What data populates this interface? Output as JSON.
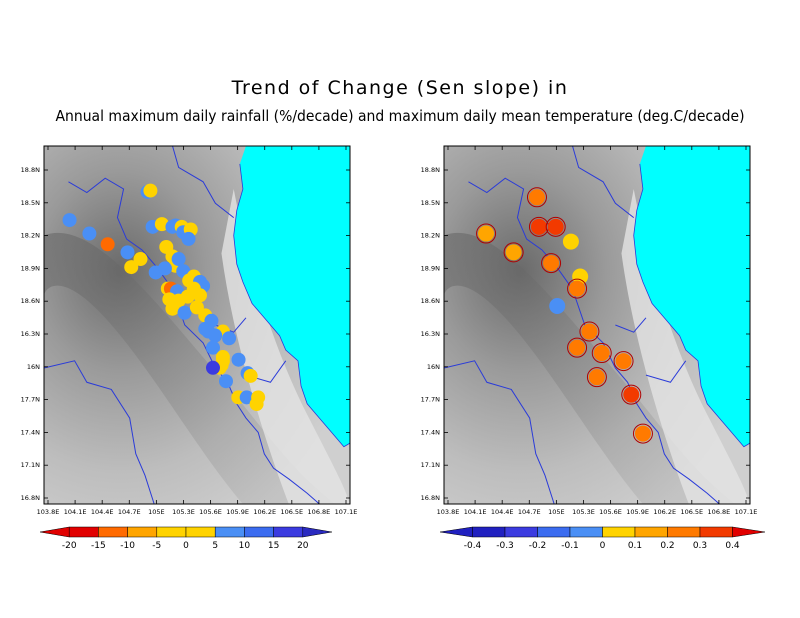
{
  "title": "Trend of Change (Sen slope) in",
  "subtitle": "Annual maximum daily rainfall (%/decade) and maximum daily mean temperature (deg.C/decade)",
  "lat_labels": [
    "18.8N",
    "18.5N",
    "18.2N",
    "18.9N",
    "18.6N",
    "16.3N",
    "16N",
    "17.7N",
    "17.4N",
    "17.1N",
    "16.8N"
  ],
  "lon_labels": [
    "103.8E",
    "104.1E",
    "104.4E",
    "104.7E",
    "105E",
    "105.3E",
    "105.6E",
    "105.9E",
    "106.2E",
    "106.5E",
    "106.8E",
    "107.1E"
  ],
  "colors": {
    "sea": "#00ffff",
    "boundary": "#2a3bd9",
    "panel_bg": "#c8c8c8"
  },
  "chart_data": [
    {
      "type": "scatter",
      "panel": "rainfall",
      "colorbar": {
        "labels": [
          "-20",
          "-15",
          "-10",
          "-5",
          "0",
          "5",
          "10",
          "15",
          "20"
        ],
        "colors": [
          "#e10000",
          "#ff6a00",
          "#ffa500",
          "#ffd300",
          "#ffd300",
          "#4a8ff5",
          "#3b6cf0",
          "#3b3be0",
          "#2a2ac0"
        ]
      },
      "stations": [
        {
          "x": 0.116,
          "y": 0.276,
          "v": 8
        },
        {
          "x": 0.206,
          "y": 0.326,
          "v": 8
        },
        {
          "x": 0.289,
          "y": 0.366,
          "v": -12
        },
        {
          "x": 0.379,
          "y": 0.396,
          "v": 8
        },
        {
          "x": 0.396,
          "y": 0.451,
          "v": -5
        },
        {
          "x": 0.438,
          "y": 0.421,
          "v": -5
        },
        {
          "x": 0.47,
          "y": 0.171,
          "v": 8
        },
        {
          "x": 0.483,
          "y": 0.166,
          "v": -5
        },
        {
          "x": 0.493,
          "y": 0.301,
          "v": 8
        },
        {
          "x": 0.535,
          "y": 0.291,
          "v": -5
        },
        {
          "x": 0.583,
          "y": 0.301,
          "v": 8
        },
        {
          "x": 0.597,
          "y": 0.296,
          "v": 8
        },
        {
          "x": 0.625,
          "y": 0.301,
          "v": -5
        },
        {
          "x": 0.632,
          "y": 0.321,
          "v": 8
        },
        {
          "x": 0.666,
          "y": 0.311,
          "v": -5
        },
        {
          "x": 0.656,
          "y": 0.346,
          "v": 8
        },
        {
          "x": 0.555,
          "y": 0.376,
          "v": -5
        },
        {
          "x": 0.583,
          "y": 0.411,
          "v": -5
        },
        {
          "x": 0.597,
          "y": 0.446,
          "v": -5
        },
        {
          "x": 0.611,
          "y": 0.421,
          "v": 8
        },
        {
          "x": 0.507,
          "y": 0.471,
          "v": 8
        },
        {
          "x": 0.549,
          "y": 0.456,
          "v": 8
        },
        {
          "x": 0.632,
          "y": 0.466,
          "v": 8
        },
        {
          "x": 0.68,
          "y": 0.486,
          "v": -5
        },
        {
          "x": 0.659,
          "y": 0.501,
          "v": -5
        },
        {
          "x": 0.708,
          "y": 0.506,
          "v": 8
        },
        {
          "x": 0.722,
          "y": 0.521,
          "v": 8
        },
        {
          "x": 0.562,
          "y": 0.531,
          "v": -5
        },
        {
          "x": 0.576,
          "y": 0.531,
          "v": -14
        },
        {
          "x": 0.604,
          "y": 0.541,
          "v": 8
        },
        {
          "x": 0.68,
          "y": 0.531,
          "v": -5
        },
        {
          "x": 0.569,
          "y": 0.571,
          "v": -5
        },
        {
          "x": 0.611,
          "y": 0.576,
          "v": -5
        },
        {
          "x": 0.652,
          "y": 0.561,
          "v": -5
        },
        {
          "x": 0.708,
          "y": 0.556,
          "v": -5
        },
        {
          "x": 0.583,
          "y": 0.606,
          "v": -5
        },
        {
          "x": 0.638,
          "y": 0.621,
          "v": 8
        },
        {
          "x": 0.694,
          "y": 0.601,
          "v": -5
        },
        {
          "x": 0.732,
          "y": 0.631,
          "v": -5
        },
        {
          "x": 0.76,
          "y": 0.651,
          "v": 8
        },
        {
          "x": 0.732,
          "y": 0.681,
          "v": 8
        },
        {
          "x": 0.746,
          "y": 0.691,
          "v": 8
        },
        {
          "x": 0.812,
          "y": 0.691,
          "v": -5
        },
        {
          "x": 0.84,
          "y": 0.716,
          "v": 8
        },
        {
          "x": 0.777,
          "y": 0.706,
          "v": 8
        },
        {
          "x": 0.767,
          "y": 0.751,
          "v": 8
        },
        {
          "x": 0.812,
          "y": 0.786,
          "v": -5
        },
        {
          "x": 0.812,
          "y": 0.801,
          "v": -5
        },
        {
          "x": 0.806,
          "y": 0.816,
          "v": -5
        },
        {
          "x": 0.798,
          "y": 0.826,
          "v": -5
        },
        {
          "x": 0.767,
          "y": 0.826,
          "v": 18
        },
        {
          "x": 0.883,
          "y": 0.796,
          "v": 8
        },
        {
          "x": 0.826,
          "y": 0.876,
          "v": 8
        },
        {
          "x": 0.924,
          "y": 0.846,
          "v": 8
        },
        {
          "x": 0.938,
          "y": 0.856,
          "v": -5
        },
        {
          "x": 0.882,
          "y": 0.936,
          "v": -5
        },
        {
          "x": 0.92,
          "y": 0.936,
          "v": 8
        },
        {
          "x": 0.972,
          "y": 0.936,
          "v": -5
        },
        {
          "x": 0.965,
          "y": 0.961,
          "v": -5
        }
      ]
    },
    {
      "type": "scatter",
      "panel": "temperature",
      "colorbar": {
        "labels": [
          "-0.4",
          "-0.3",
          "-0.2",
          "-0.1",
          "0",
          "0.1",
          "0.2",
          "0.3",
          "0.4"
        ],
        "colors": [
          "#2020c0",
          "#3b3be0",
          "#3b6cf0",
          "#4a8ff5",
          "#ffd300",
          "#ffa500",
          "#ff7a00",
          "#f23a00",
          "#e10000"
        ]
      },
      "stations": [
        {
          "x": 0.191,
          "y": 0.326,
          "v": 0.15
        },
        {
          "x": 0.316,
          "y": 0.396,
          "v": 0.15
        },
        {
          "x": 0.422,
          "y": 0.191,
          "v": 0.25
        },
        {
          "x": 0.431,
          "y": 0.301,
          "v": 0.35
        },
        {
          "x": 0.507,
          "y": 0.301,
          "v": 0.35
        },
        {
          "x": 0.486,
          "y": 0.436,
          "v": 0.25
        },
        {
          "x": 0.514,
          "y": 0.596,
          "v": -0.1
        },
        {
          "x": 0.576,
          "y": 0.356,
          "v": 0.05
        },
        {
          "x": 0.618,
          "y": 0.486,
          "v": 0.05
        },
        {
          "x": 0.604,
          "y": 0.531,
          "v": 0.25
        },
        {
          "x": 0.66,
          "y": 0.691,
          "v": 0.2
        },
        {
          "x": 0.604,
          "y": 0.751,
          "v": 0.2
        },
        {
          "x": 0.716,
          "y": 0.771,
          "v": 0.2
        },
        {
          "x": 0.694,
          "y": 0.861,
          "v": 0.2
        },
        {
          "x": 0.815,
          "y": 0.801,
          "v": 0.2
        },
        {
          "x": 0.85,
          "y": 0.926,
          "v": 0.3
        },
        {
          "x": 0.903,
          "y": 1.071,
          "v": 0.25
        }
      ]
    }
  ]
}
